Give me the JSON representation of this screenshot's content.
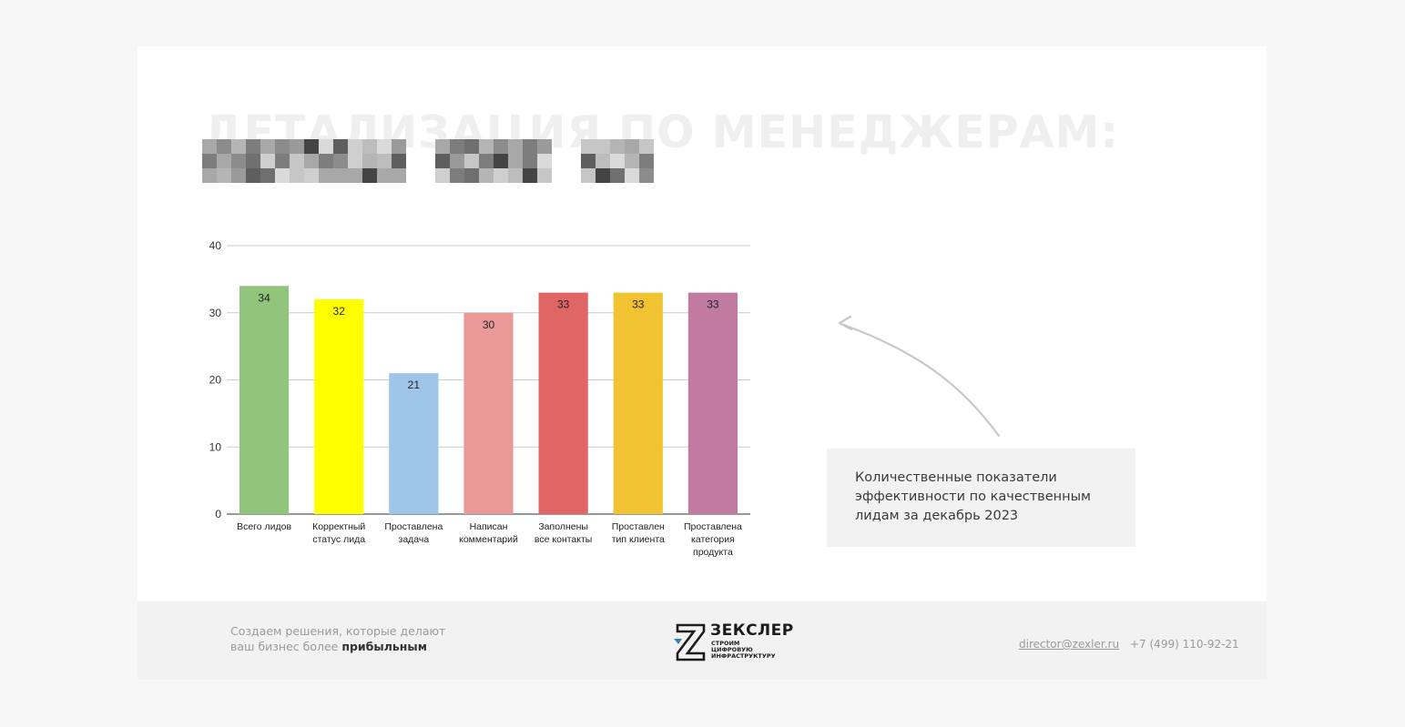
{
  "slide": {
    "title": "ДЕТАЛИЗАЦИЯ ПО МЕНЕДЖЕРАМ:",
    "caption_lines": [
      "Количественные показатели",
      "эффективности по качественным",
      "лидам за декабрь 2023"
    ]
  },
  "chart_data": {
    "type": "bar",
    "title": "",
    "xlabel": "",
    "ylabel": "",
    "ylim": [
      0,
      40
    ],
    "yticks": [
      0,
      10,
      20,
      30,
      40
    ],
    "grid": true,
    "categories": [
      [
        "Всего лидов"
      ],
      [
        "Корректный",
        "статус лида"
      ],
      [
        "Проставлена",
        "задача"
      ],
      [
        "Написан",
        "комментарий"
      ],
      [
        "Заполнены",
        "все контакты"
      ],
      [
        "Проставлен",
        "тип клиента"
      ],
      [
        "Проставлена",
        "категория",
        "продукта"
      ]
    ],
    "values": [
      34,
      32,
      21,
      30,
      33,
      33,
      33
    ],
    "colors": [
      "#93c47d",
      "#ffff00",
      "#9fc5e8",
      "#ea9999",
      "#e06666",
      "#f1c232",
      "#c27ba0"
    ],
    "data_labels": true
  },
  "footer": {
    "slogan_line1": "Создаем решения, которые делают",
    "slogan_line2_prefix": "ваш бизнес более ",
    "slogan_line2_strong": "прибыльным",
    "logo_name": "ЗЕКСЛЕР",
    "logo_tagline": [
      "СТРОИМ",
      "ЦИФРОВУЮ",
      "ИНФРАСТРУКТУРУ"
    ],
    "email": "director@zexler.ru",
    "phone": "+7 (499) 110-92-21"
  },
  "colors": {
    "page_bg": "#f7f7f7",
    "slide_bg": "#ffffff",
    "panel_bg": "#f2f2f2",
    "logo_accent": "#3c7ec4"
  }
}
